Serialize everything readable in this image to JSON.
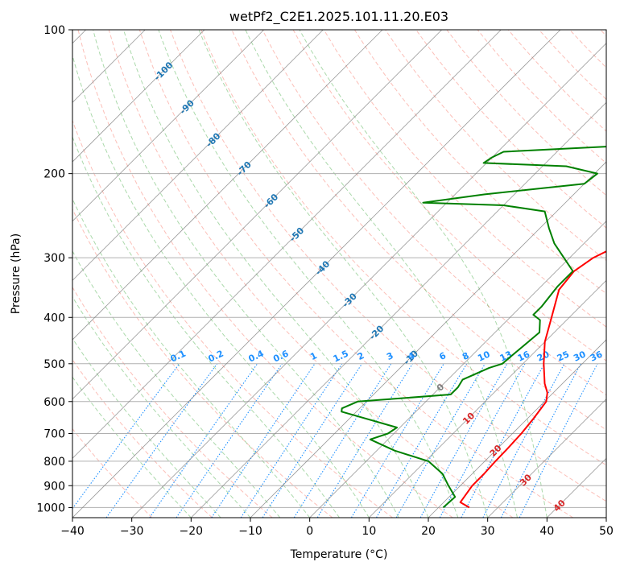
{
  "chart_data": {
    "type": "line",
    "title": "wetPf2_C2E1.2025.101.11.20.E03",
    "xlabel": "Temperature (°C)",
    "ylabel": "Pressure (hPa)",
    "xlim": [
      -40,
      50
    ],
    "ylim": [
      1050,
      100
    ],
    "y_scale": "log",
    "x_ticks": [
      -40,
      -30,
      -20,
      -10,
      0,
      10,
      20,
      30,
      40,
      50
    ],
    "y_ticks": [
      100,
      200,
      300,
      400,
      500,
      600,
      700,
      800,
      900,
      1000
    ],
    "grid": true,
    "colors": {
      "temperature": "#ff0000",
      "dewpoint": "#008000",
      "dry_adiabats": "#fa8072",
      "moist_adiabats": "#2ca02c",
      "mixing_ratio": "#1e90ff",
      "isotherms": "#808080",
      "isotherm_labels": "#1f77b4",
      "theta_e_labels": "#d62728"
    },
    "isotherm_labels": [
      "-100",
      "-90",
      "-80",
      "-70",
      "-60",
      "-50",
      "-40",
      "-30",
      "-20",
      "-10",
      "0",
      "10",
      "20",
      "30",
      "40"
    ],
    "mixing_ratio_labels": [
      "0.1",
      "0.2",
      "0.4",
      "0.6",
      "1",
      "1.5",
      "2",
      "3",
      "4",
      "6",
      "8",
      "10",
      "13",
      "16",
      "20",
      "25",
      "30",
      "36"
    ],
    "series": [
      {
        "role": "temperature",
        "points": [
          {
            "t": 25.2,
            "p": 1000
          },
          {
            "t": 22.8,
            "p": 975
          },
          {
            "t": 22.0,
            "p": 900
          },
          {
            "t": 22.0,
            "p": 850
          },
          {
            "t": 21.8,
            "p": 800
          },
          {
            "t": 21.7,
            "p": 750
          },
          {
            "t": 21.5,
            "p": 700
          },
          {
            "t": 21.0,
            "p": 650
          },
          {
            "t": 20.3,
            "p": 600
          },
          {
            "t": 19.0,
            "p": 575
          },
          {
            "t": 17.0,
            "p": 550
          },
          {
            "t": 13.5,
            "p": 500
          },
          {
            "t": 10.0,
            "p": 450
          },
          {
            "t": 7.0,
            "p": 400
          },
          {
            "t": 3.6,
            "p": 350
          },
          {
            "t": 3.0,
            "p": 320
          },
          {
            "t": 4.0,
            "p": 300
          },
          {
            "t": 9.2,
            "p": 260
          },
          {
            "t": 11.2,
            "p": 240
          },
          {
            "t": 10.0,
            "p": 220
          },
          {
            "t": 9.5,
            "p": 200
          },
          {
            "t": 9.2,
            "p": 180
          },
          {
            "t": 7.2,
            "p": 160
          },
          {
            "t": 5.2,
            "p": 140
          },
          {
            "t": 4.6,
            "p": 130
          },
          {
            "t": 5.2,
            "p": 120
          },
          {
            "t": 6.3,
            "p": 110
          },
          {
            "t": 6.6,
            "p": 100
          }
        ]
      },
      {
        "role": "dewpoint",
        "points": [
          {
            "t": 20.8,
            "p": 1000
          },
          {
            "t": 21.0,
            "p": 950
          },
          {
            "t": 18.0,
            "p": 900
          },
          {
            "t": 15.0,
            "p": 850
          },
          {
            "t": 10.5,
            "p": 800
          },
          {
            "t": 3.0,
            "p": 760
          },
          {
            "t": -3.0,
            "p": 720
          },
          {
            "t": -1.0,
            "p": 700
          },
          {
            "t": -0.5,
            "p": 680
          },
          {
            "t": -12.5,
            "p": 630
          },
          {
            "t": -13.0,
            "p": 620
          },
          {
            "t": -11.5,
            "p": 600
          },
          {
            "t": 3.0,
            "p": 580
          },
          {
            "t": 3.0,
            "p": 560
          },
          {
            "t": 2.5,
            "p": 540
          },
          {
            "t": 5.0,
            "p": 510
          },
          {
            "t": 6.5,
            "p": 500
          },
          {
            "t": 7.2,
            "p": 450
          },
          {
            "t": 7.5,
            "p": 430
          },
          {
            "t": 5.5,
            "p": 405
          },
          {
            "t": 3.5,
            "p": 395
          },
          {
            "t": 3.5,
            "p": 380
          },
          {
            "t": 2.8,
            "p": 345
          },
          {
            "t": 2.8,
            "p": 320
          },
          {
            "t": -5.0,
            "p": 280
          },
          {
            "t": -8.5,
            "p": 260
          },
          {
            "t": -12.0,
            "p": 240
          },
          {
            "t": -20.0,
            "p": 233
          },
          {
            "t": -34.0,
            "p": 230
          },
          {
            "t": -25.0,
            "p": 221
          },
          {
            "t": -10.0,
            "p": 210
          },
          {
            "t": -9.5,
            "p": 200
          },
          {
            "t": -16.0,
            "p": 193
          },
          {
            "t": -30.5,
            "p": 190
          },
          {
            "t": -30.0,
            "p": 185
          },
          {
            "t": -29.0,
            "p": 180
          },
          {
            "t": -10.0,
            "p": 175
          },
          {
            "t": -9.0,
            "p": 170
          },
          {
            "t": -10.0,
            "p": 160
          },
          {
            "t": -12.0,
            "p": 150
          },
          {
            "t": -10.0,
            "p": 140
          },
          {
            "t": -8.0,
            "p": 130
          },
          {
            "t": -6.0,
            "p": 120
          },
          {
            "t": -3.0,
            "p": 110
          },
          {
            "t": -1.0,
            "p": 100
          }
        ]
      }
    ]
  }
}
